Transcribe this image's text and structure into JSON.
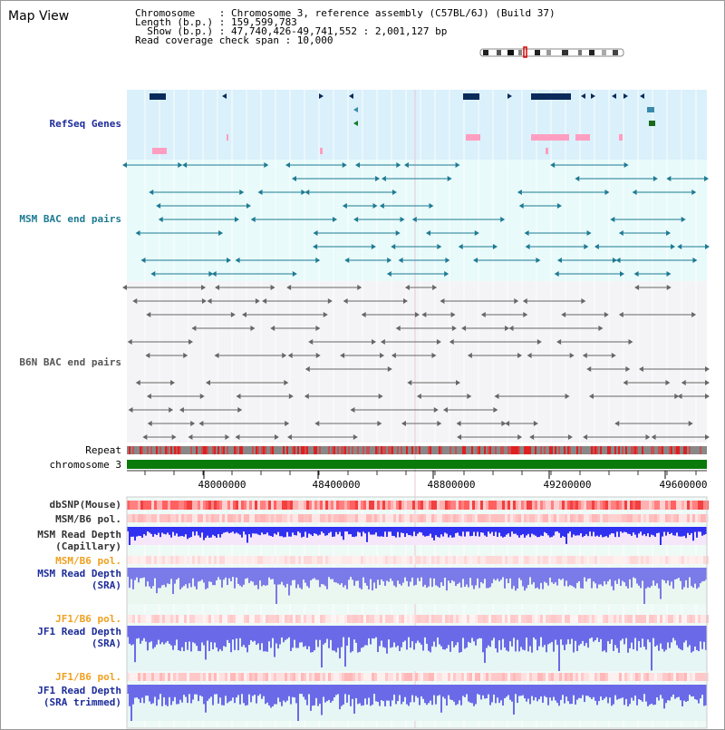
{
  "panel_title": "Map View",
  "info": {
    "line1": "Chromosome    : Chromosome 3, reference assembly (C57BL/6J) (Build 37)",
    "line2": "Length (b.p.) : 159,599,783",
    "line3": "  Show (b.p.) : 47,740,426-49,741,552 : 2,001,127 bp",
    "line4": "Read coverage check span : 10,000"
  },
  "tracks": {
    "refseq": "RefSeq Genes",
    "msm_bac": "MSM BAC end pairs",
    "b6n_bac": "B6N BAC end pairs",
    "repeat": "Repeat",
    "chromosome": "chromosome 3",
    "dbsnp": "dbSNP(Mouse)",
    "msm_b6_pol_1": "MSM/B6 pol.",
    "msm_depth_cap": "MSM Read Depth",
    "msm_depth_cap_sub": "(Capillary)",
    "msm_b6_pol_2": "MSM/B6 pol.",
    "msm_depth_sra": "MSM Read Depth",
    "msm_depth_sra_sub": "(SRA)",
    "jf1_b6_pol_1": "JF1/B6 pol.",
    "jf1_depth_sra": "JF1 Read Depth",
    "jf1_depth_sra_sub": "(SRA)",
    "jf1_b6_pol_2": "JF1/B6 pol.",
    "jf1_depth_trim": "JF1 Read Depth",
    "jf1_depth_trim_sub": "(SRA trimmed)"
  },
  "axis": {
    "ticks": [
      "48000000",
      "48400000",
      "48800000",
      "49200000",
      "49600000"
    ]
  },
  "colors": {
    "refseq_band": "#daf0fb",
    "msm_bac_band": "#e8fafa",
    "b6n_band": "#f4f4f6",
    "chromosome_bar": "#0a7a0a",
    "teal": "#1d7a92",
    "navy": "#0a2a5a",
    "gray_feature": "#666666",
    "pink": "#ff9ec0",
    "depth_blue": "#2a2ae8"
  }
}
